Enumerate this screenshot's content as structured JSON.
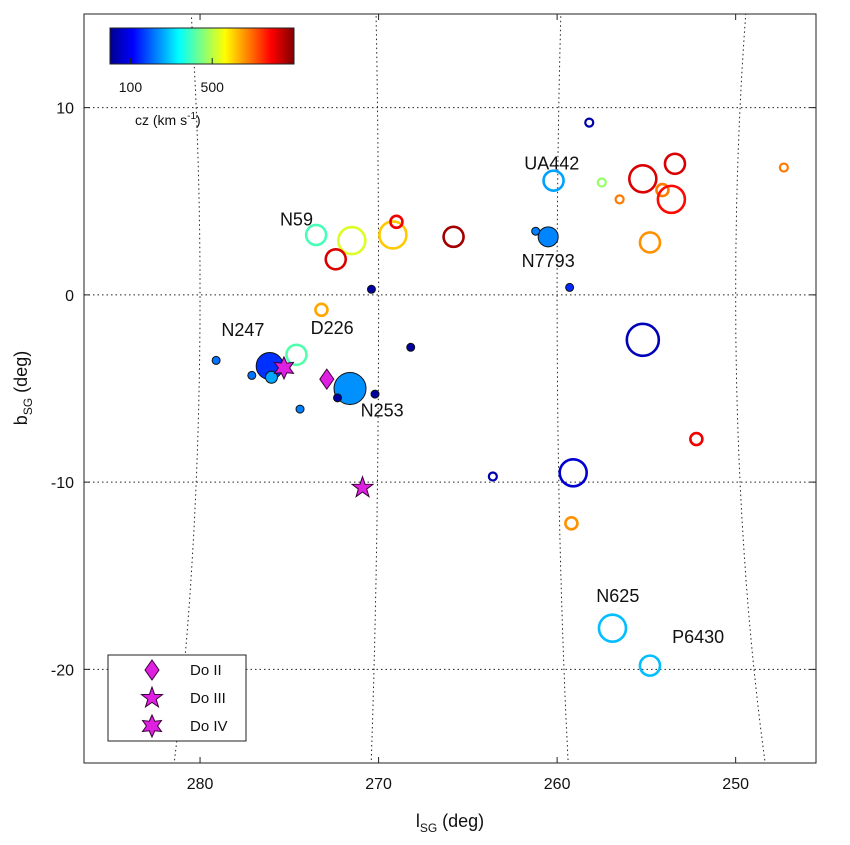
{
  "chart_data": {
    "type": "scatter",
    "title": "",
    "x_axis": {
      "label_main": "l",
      "label_sub": "SG",
      "label_rest": " (deg)",
      "range": [
        286.5,
        245.5
      ],
      "reversed": true,
      "ticks": [
        280,
        270,
        260,
        250
      ]
    },
    "y_axis": {
      "label_main": "b",
      "label_sub": "SG",
      "label_rest": " (deg)",
      "range": [
        -25,
        15
      ],
      "ticks": [
        10,
        0,
        -10,
        -20
      ]
    },
    "grid": "dotted curved graticule",
    "colorbar": {
      "colormap": "jet",
      "tick_labels": [
        "100",
        "500"
      ],
      "tick_values": [
        100,
        500
      ],
      "vmin": 0,
      "vmax": 900,
      "label_main": "cz (km s",
      "label_sup": "-1",
      "label_end": ")",
      "placement": "top-left"
    },
    "galaxies": [
      {
        "l": 276.1,
        "b": -3.8,
        "cz": 155,
        "size": "large",
        "filled": true
      },
      {
        "l": 271.6,
        "b": -5.0,
        "cz": 240,
        "size": "xlarge",
        "filled": true
      },
      {
        "l": 260.5,
        "b": 3.1,
        "cz": 230,
        "size": "medium",
        "filled": true
      },
      {
        "l": 279.1,
        "b": -3.5,
        "cz": 215,
        "size": "tiny",
        "filled": true
      },
      {
        "l": 277.1,
        "b": -4.3,
        "cz": 215,
        "size": "tiny",
        "filled": true
      },
      {
        "l": 276.0,
        "b": -4.4,
        "cz": 260,
        "size": "small",
        "filled": true
      },
      {
        "l": 274.4,
        "b": -6.1,
        "cz": 225,
        "size": "tiny",
        "filled": true
      },
      {
        "l": 272.3,
        "b": -5.5,
        "cz": 30,
        "size": "tiny",
        "filled": true
      },
      {
        "l": 270.2,
        "b": -5.3,
        "cz": 30,
        "size": "tiny",
        "filled": true
      },
      {
        "l": 270.4,
        "b": 0.3,
        "cz": 30,
        "size": "tiny",
        "filled": true
      },
      {
        "l": 268.2,
        "b": -2.8,
        "cz": 30,
        "size": "tiny",
        "filled": true
      },
      {
        "l": 261.2,
        "b": 3.4,
        "cz": 225,
        "size": "tiny",
        "filled": true
      },
      {
        "l": 259.3,
        "b": 0.4,
        "cz": 150,
        "size": "tiny",
        "filled": true
      },
      {
        "l": 260.2,
        "b": 6.1,
        "cz": 255,
        "size": "medium",
        "filled": false
      },
      {
        "l": 257.5,
        "b": 6.0,
        "cz": 470,
        "size": "tiny",
        "filled": false
      },
      {
        "l": 258.2,
        "b": 9.2,
        "cz": 35,
        "size": "tiny",
        "filled": false
      },
      {
        "l": 255.2,
        "b": 6.2,
        "cz": 820,
        "size": "large",
        "filled": false
      },
      {
        "l": 253.4,
        "b": 7.0,
        "cz": 820,
        "size": "medium",
        "filled": false
      },
      {
        "l": 254.1,
        "b": 5.6,
        "cz": 680,
        "size": "small",
        "filled": false
      },
      {
        "l": 253.6,
        "b": 5.1,
        "cz": 780,
        "size": "large",
        "filled": false
      },
      {
        "l": 256.5,
        "b": 5.1,
        "cz": 680,
        "size": "tiny",
        "filled": false
      },
      {
        "l": 247.3,
        "b": 6.8,
        "cz": 680,
        "size": "tiny",
        "filled": false
      },
      {
        "l": 254.8,
        "b": 2.8,
        "cz": 660,
        "size": "medium",
        "filled": false
      },
      {
        "l": 273.5,
        "b": 3.2,
        "cz": 400,
        "size": "medium",
        "filled": false
      },
      {
        "l": 271.5,
        "b": 2.9,
        "cz": 530,
        "size": "large",
        "filled": false
      },
      {
        "l": 269.2,
        "b": 3.2,
        "cz": 610,
        "size": "large",
        "filled": false
      },
      {
        "l": 269.0,
        "b": 3.9,
        "cz": 800,
        "size": "small",
        "filled": false
      },
      {
        "l": 272.4,
        "b": 1.9,
        "cz": 820,
        "size": "medium",
        "filled": false
      },
      {
        "l": 265.8,
        "b": 3.1,
        "cz": 870,
        "size": "medium",
        "filled": false
      },
      {
        "l": 273.2,
        "b": -0.8,
        "cz": 640,
        "size": "small",
        "filled": false
      },
      {
        "l": 274.6,
        "b": -3.2,
        "cz": 410,
        "size": "medium",
        "filled": false
      },
      {
        "l": 255.2,
        "b": -2.4,
        "cz": 50,
        "size": "xlarge",
        "filled": false
      },
      {
        "l": 252.2,
        "b": -7.7,
        "cz": 800,
        "size": "small",
        "filled": false
      },
      {
        "l": 263.6,
        "b": -9.7,
        "cz": 40,
        "size": "tiny",
        "filled": false
      },
      {
        "l": 259.1,
        "b": -9.5,
        "cz": 70,
        "size": "large",
        "filled": false
      },
      {
        "l": 259.2,
        "b": -12.2,
        "cz": 660,
        "size": "small",
        "filled": false
      },
      {
        "l": 256.9,
        "b": -17.8,
        "cz": 280,
        "size": "large",
        "filled": false
      },
      {
        "l": 254.8,
        "b": -19.8,
        "cz": 280,
        "size": "medium",
        "filled": false
      }
    ],
    "dwarfs": [
      {
        "type": "diamond",
        "l": 272.9,
        "b": -4.5
      },
      {
        "type": "star5",
        "l": 270.9,
        "b": -10.3
      },
      {
        "type": "star6",
        "l": 275.3,
        "b": -3.9
      }
    ],
    "annotations": [
      {
        "text": "UA442",
        "l": 260.3,
        "b": 6.7
      },
      {
        "text": "N59",
        "l": 274.6,
        "b": 3.7
      },
      {
        "text": "N7793",
        "l": 260.5,
        "b": 1.5
      },
      {
        "text": "N247",
        "l": 277.6,
        "b": -2.2
      },
      {
        "text": "D226",
        "l": 272.6,
        "b": -2.1
      },
      {
        "text": "N253",
        "l": 269.8,
        "b": -6.5
      },
      {
        "text": "N625",
        "l": 256.6,
        "b": -16.4
      },
      {
        "text": "P6430",
        "l": 252.1,
        "b": -18.6
      }
    ],
    "legend": {
      "placement": "bottom-left",
      "entries": [
        {
          "marker": "diamond",
          "label": "Do II"
        },
        {
          "marker": "star5",
          "label": "Do III"
        },
        {
          "marker": "star6",
          "label": "Do IV"
        }
      ]
    },
    "colors": {
      "dwarf_fill": "#e020e0",
      "dwarf_edge": "#3a003a"
    }
  }
}
